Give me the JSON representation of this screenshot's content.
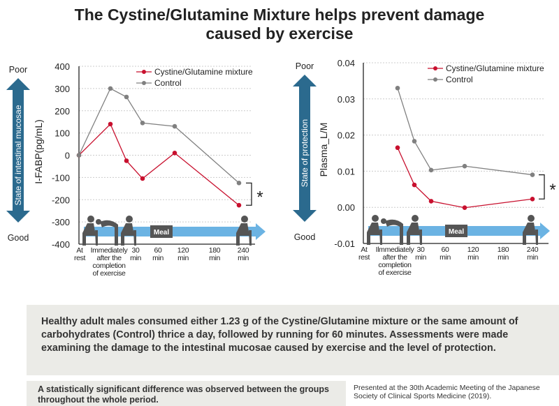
{
  "title_line1": "The Cystine/Glutamine Mixture helps prevent damage",
  "title_line2": "caused by exercise",
  "colors": {
    "mixture": "#c8102e",
    "control": "#808080",
    "state_arrow": "#2b6a8e",
    "timeline": "#6bb3e3",
    "silhouette": "#555555"
  },
  "chart_data": [
    {
      "type": "line",
      "ylabel": "I-FABP(pg/mL)",
      "side_label": "State of intestinal mucosae",
      "poor": "Poor",
      "good": "Good",
      "ylim": [
        -400,
        400
      ],
      "yticks": [
        "400",
        "300",
        "200",
        "100",
        "0",
        "-100",
        "-200",
        "-300",
        "-400"
      ],
      "categories": [
        [
          "At",
          "rest"
        ],
        [
          "Immediately",
          "after the",
          "completion",
          "of exercise"
        ],
        [
          "30",
          "min"
        ],
        [
          "60",
          "min"
        ],
        [
          "120",
          "min"
        ],
        [
          "180",
          "min"
        ],
        [
          "240",
          "min"
        ]
      ],
      "series": [
        {
          "name": "Cystine/Glutamine mixture",
          "values": [
            0,
            140,
            -25,
            -105,
            10,
            null,
            -225
          ]
        },
        {
          "name": "Control",
          "values": [
            0,
            300,
            262,
            145,
            130,
            null,
            -125
          ]
        }
      ],
      "significance": "*",
      "timeline_label": "Meal",
      "grid": true,
      "legend": "top-right"
    },
    {
      "type": "line",
      "ylabel": "Plasma_L/M",
      "side_label": "State of protection",
      "poor": "Poor",
      "good": "Good",
      "ylim": [
        -0.01,
        0.04
      ],
      "yticks": [
        "0.04",
        "0.03",
        "0.02",
        "0.01",
        "0.00",
        "-0.01"
      ],
      "categories": [
        [
          "At",
          "rest"
        ],
        [
          "Ilmmediately",
          "after the",
          "completion",
          "of exercise"
        ],
        [
          "30",
          "min"
        ],
        [
          "60",
          "min"
        ],
        [
          "120",
          "min"
        ],
        [
          "180",
          "min"
        ],
        [
          "240",
          "min"
        ]
      ],
      "series": [
        {
          "name": "Cystine/Glutamine mixture",
          "values": [
            null,
            0.0165,
            0.0062,
            0.0017,
            -0.0001,
            null,
            0.0023
          ]
        },
        {
          "name": "Control",
          "values": [
            null,
            0.033,
            0.0183,
            0.0103,
            0.0114,
            null,
            0.009
          ]
        }
      ],
      "significance": "*",
      "timeline_label": "Meal",
      "grid": true,
      "legend": "top-right"
    }
  ],
  "note": "Healthy adult males consumed either 1.23 g of the Cystine/Glutamine mixture or the same amount of carbohydrates (Control) thrice a day, followed by running for 60 minutes. Assessments were made examining the damage to the intestinal mucosae caused by exercise and the level of protection.",
  "significance_note": "A statistically significant difference was observed between the groups throughout the whole period.",
  "reference": "Presented at the 30th Academic Meeting of the Japanese Society of Clinical Sports Medicine (2019)."
}
